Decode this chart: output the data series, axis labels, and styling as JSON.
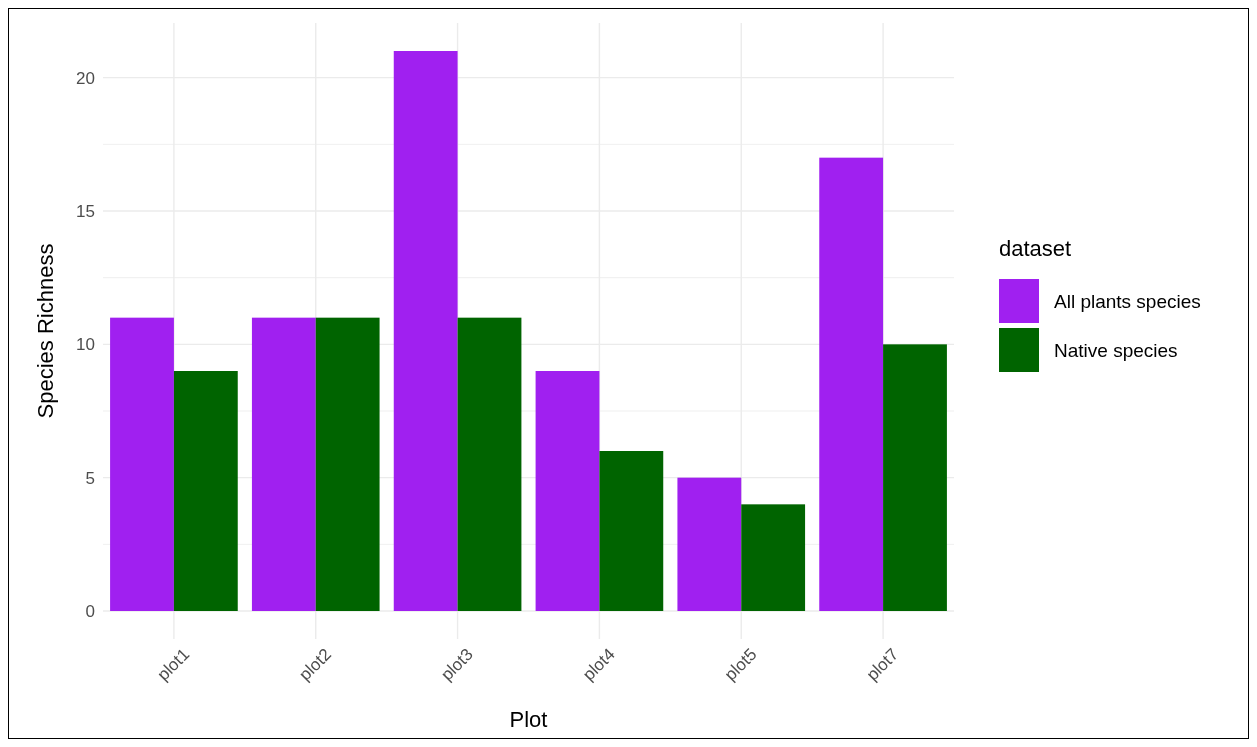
{
  "chart_data": {
    "type": "bar",
    "xlabel": "Plot",
    "ylabel": "Species Richness",
    "legend_title": "dataset",
    "categories": [
      "plot1",
      "plot2",
      "plot3",
      "plot4",
      "plot5",
      "plot7"
    ],
    "series": [
      {
        "name": "All plants species",
        "color": "#a020f0",
        "values": [
          11,
          11,
          21,
          9,
          5,
          17
        ]
      },
      {
        "name": "Native species",
        "color": "#006400",
        "values": [
          9,
          11,
          11,
          6,
          4,
          10
        ]
      }
    ],
    "ylim": [
      -1.05,
      22.05
    ],
    "yticks": [
      0,
      {
        "value": 2.5,
        "label": null
      },
      5,
      {
        "value": 7.5,
        "label": null
      },
      10,
      {
        "value": 12.5,
        "label": null
      },
      15,
      {
        "value": 17.5,
        "label": null
      },
      20
    ],
    "grid": true,
    "legend": "right"
  }
}
